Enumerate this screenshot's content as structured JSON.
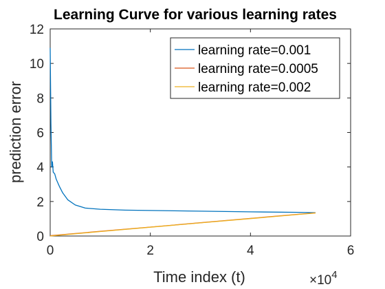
{
  "chart_data": {
    "type": "line",
    "title": "Learning Curve for various learning rates",
    "xlabel": "Time index (t)",
    "ylabel": "prediction error",
    "x_multiplier_label": "×10",
    "x_multiplier_exponent": "4",
    "xlim": [
      0,
      60000
    ],
    "ylim": [
      0,
      12
    ],
    "xticks": [
      0,
      20000,
      40000,
      60000
    ],
    "xtick_labels": [
      "0",
      "2",
      "4",
      "6"
    ],
    "yticks": [
      0,
      2,
      4,
      6,
      8,
      10,
      12
    ],
    "ytick_labels": [
      "0",
      "2",
      "4",
      "6",
      "8",
      "10",
      "12"
    ],
    "grid": false,
    "legend_position": "top-right",
    "series": [
      {
        "name": "learning rate=0.001",
        "color": "#0072BD",
        "x": [
          0,
          150,
          300,
          450,
          600,
          900,
          1200,
          1800,
          2500,
          3500,
          5000,
          7000,
          10000,
          15000,
          20000,
          30000,
          40000,
          50000,
          53000
        ],
        "y": [
          10.9,
          6.5,
          4.0,
          4.3,
          3.7,
          3.6,
          3.3,
          2.9,
          2.5,
          2.1,
          1.8,
          1.62,
          1.55,
          1.5,
          1.48,
          1.44,
          1.4,
          1.37,
          1.35
        ]
      },
      {
        "name": "learning rate=0.0005",
        "color": "#D95319",
        "x": [
          0,
          10000,
          20000,
          30000,
          40000,
          50000,
          53000
        ],
        "y": [
          0.02,
          0.27,
          0.52,
          0.77,
          1.02,
          1.27,
          1.34
        ]
      },
      {
        "name": "learning rate=0.002",
        "color": "#EDB120",
        "x": [
          0,
          10000,
          20000,
          30000,
          40000,
          50000,
          53000
        ],
        "y": [
          0.0,
          0.26,
          0.51,
          0.76,
          1.01,
          1.26,
          1.33
        ]
      }
    ]
  }
}
